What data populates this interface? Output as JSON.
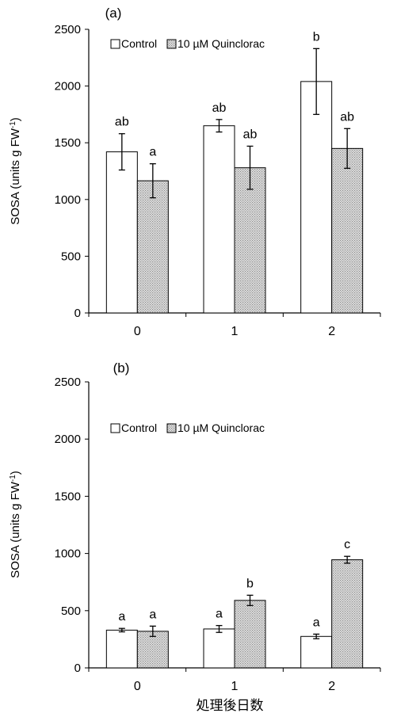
{
  "figure": {
    "xlabel": "処理後日数"
  },
  "chart_data": [
    {
      "panel": "(a)",
      "type": "bar",
      "categories": [
        "0",
        "1",
        "2"
      ],
      "ylabel": "SOSA (units g FW-1)",
      "ylim": [
        0,
        2500
      ],
      "yticks": [
        0,
        500,
        1000,
        1500,
        2000,
        2500
      ],
      "legend_position": "top-left",
      "series": [
        {
          "name": "Control",
          "fill": "white",
          "values": [
            1420,
            1650,
            2040
          ],
          "errors": [
            160,
            55,
            290
          ],
          "letters": [
            "ab",
            "ab",
            "b"
          ]
        },
        {
          "name": "10 µM Quinclorac",
          "fill": "dotted-grey",
          "values": [
            1165,
            1280,
            1450
          ],
          "errors": [
            150,
            190,
            175
          ],
          "letters": [
            "a",
            "ab",
            "ab"
          ]
        }
      ]
    },
    {
      "panel": "(b)",
      "type": "bar",
      "categories": [
        "0",
        "1",
        "2"
      ],
      "ylabel": "SOSA (units g FW-1)",
      "ylim": [
        0,
        2500
      ],
      "yticks": [
        0,
        500,
        1000,
        1500,
        2000,
        2500
      ],
      "legend_position": "top-left",
      "series": [
        {
          "name": "Control",
          "fill": "white",
          "values": [
            330,
            340,
            275
          ],
          "errors": [
            15,
            30,
            20
          ],
          "letters": [
            "a",
            "a",
            "a"
          ]
        },
        {
          "name": "10 µM Quinclorac",
          "fill": "dotted-grey",
          "values": [
            320,
            590,
            945
          ],
          "errors": [
            45,
            45,
            30
          ],
          "letters": [
            "a",
            "b",
            "c"
          ]
        }
      ]
    }
  ]
}
